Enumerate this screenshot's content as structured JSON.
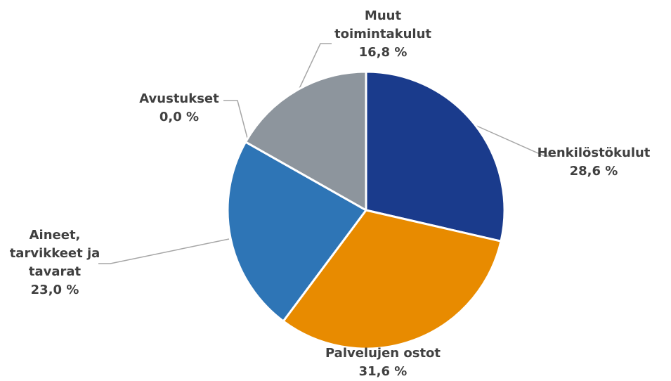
{
  "chart_data": {
    "type": "pie",
    "categories": [
      "Henkilöstökulut",
      "Palvelujen ostot",
      "Aineet, tarvikkeet ja tavarat",
      "Avustukset",
      "Muut toimintakulut"
    ],
    "values": [
      28.6,
      31.6,
      23.0,
      0.0,
      16.8
    ],
    "value_labels": [
      "28,6 %",
      "31,6 %",
      "23,0 %",
      "0,0 %",
      "16,8 %"
    ],
    "colors": [
      "#1a3b8c",
      "#e88b00",
      "#2e75b6",
      "#a5a5a5",
      "#8d959d"
    ]
  }
}
